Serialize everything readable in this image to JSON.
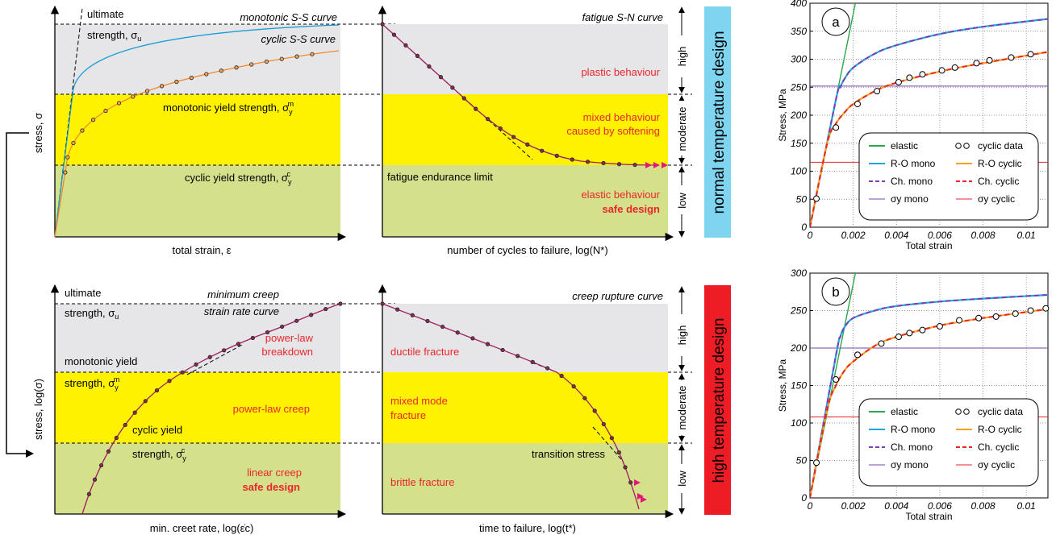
{
  "colors": {
    "gray": "#e6e6e8",
    "yellow": "#fff200",
    "green": "#d5e08b",
    "red_text": "#e8262b",
    "normal_box": "#7fd4ef",
    "high_box": "#ee1c24",
    "monotonic": "#1b9bd6",
    "cyclic": "#f08a2a",
    "magenta": "#9e1e64",
    "marker_fill": "#8a2a55",
    "elastic": "#2aa84a",
    "ro_mono": "#18a8e0",
    "ro_cyclic": "#f6a21a",
    "ch_mono": "#7b3fb4",
    "ch_cyclic": "#e8262b",
    "sy_mono": "#7b3fb4",
    "sy_cyclic": "#e8262b"
  },
  "p1": {
    "ultimate": "ultimate",
    "strength_u": "strength, σ",
    "strength_u_sub": "u",
    "monotonic_curve": "monotonic S-S curve",
    "cyclic_curve": "cyclic S-S curve",
    "mono_yield": "monotonic yield strength, σ",
    "mono_yield_sub": "y",
    "mono_yield_sup": "m",
    "cyclic_yield": "cyclic yield strength, σ",
    "cyclic_yield_sub": "y",
    "cyclic_yield_sup": "c",
    "ylabel": "stress, σ",
    "xlabel": "total strain, ε"
  },
  "p2": {
    "curve_label": "fatigue S-N curve",
    "plastic": "plastic behaviour",
    "mixed_1": "mixed behaviour",
    "mixed_2": "caused by softening",
    "endurance": "fatigue endurance limit",
    "elastic": "elastic behaviour",
    "safe": "safe design",
    "xlabel": "number of cycles to failure, log(N*)",
    "level_high": "high",
    "level_moderate": "moderate",
    "level_low": "low",
    "box_label": "normal temperature design"
  },
  "p3": {
    "ultimate": "ultimate",
    "strength_u": "strength, σ",
    "strength_u_sub": "u",
    "curve_1": "minimum creep",
    "curve_2": "strain rate curve",
    "plb_1": "power-law",
    "plb_2": "breakdown",
    "mono_yield": "monotonic yield",
    "strength_m": "strength, σ",
    "strength_m_sub": "y",
    "strength_m_sup": "m",
    "plc": "power-law creep",
    "cyclic_yield": "cyclic yield",
    "strength_c": "strength, σ",
    "strength_c_sub": "y",
    "strength_c_sup": "c",
    "linear": "linear creep",
    "safe": "safe design",
    "ylabel": "stress, log(σ)",
    "xlabel": "min. creet rate, log(ε̇c)"
  },
  "p4": {
    "curve_label": "creep rupture curve",
    "ductile": "ductile fracture",
    "mixed_1": "mixed mode",
    "mixed_2": "fracture",
    "transition": "transition stress",
    "brittle": "brittle fracture",
    "xlabel": "time to failure, log(t*)",
    "level_high": "high",
    "level_moderate": "moderate",
    "level_low": "low",
    "box_label": "high temperature design"
  },
  "chart_data": [
    {
      "type": "line",
      "panel_label": "a",
      "xlabel": "Total strain",
      "ylabel": "Stress, MPa",
      "xlim": [
        0,
        0.011
      ],
      "ylim": [
        0,
        400
      ],
      "x_ticks": [
        "0",
        "0.002",
        "0.004",
        "0.006",
        "0.008",
        "0.01"
      ],
      "y_ticks": [
        "0",
        "50",
        "100",
        "150",
        "200",
        "250",
        "300",
        "350",
        "400"
      ],
      "sigma_y_mono": 252,
      "sigma_y_cyclic": 116,
      "legend": [
        "elastic",
        "cyclic data",
        "R-O mono",
        "R-O cyclic",
        "Ch. mono",
        "Ch. cyclic",
        "σy mono",
        "σy cyclic"
      ],
      "series": [
        {
          "name": "elastic",
          "x": [
            0,
            0.0021
          ],
          "y": [
            0,
            400
          ]
        },
        {
          "name": "R-O mono",
          "x": [
            0,
            0.0012,
            0.0014,
            0.0016,
            0.002,
            0.003,
            0.004,
            0.006,
            0.008,
            0.011
          ],
          "y": [
            0,
            228,
            250,
            265,
            285,
            310,
            325,
            345,
            358,
            372
          ]
        },
        {
          "name": "R-O cyclic",
          "x": [
            0,
            0.0008,
            0.0012,
            0.0016,
            0.002,
            0.003,
            0.004,
            0.006,
            0.008,
            0.011
          ],
          "y": [
            0,
            150,
            185,
            205,
            220,
            243,
            258,
            278,
            293,
            313
          ]
        },
        {
          "name": "cyclic data",
          "x": [
            0.0003,
            0.0012,
            0.0022,
            0.0031,
            0.0041,
            0.0046,
            0.0052,
            0.0061,
            0.0067,
            0.0077,
            0.0083,
            0.0093,
            0.0102
          ],
          "y": [
            51,
            178,
            220,
            243,
            259,
            267,
            273,
            280,
            285,
            293,
            298,
            303,
            309
          ]
        }
      ]
    },
    {
      "type": "line",
      "panel_label": "b",
      "xlabel": "Total strain",
      "ylabel": "Stress, MPa",
      "xlim": [
        0,
        0.011
      ],
      "ylim": [
        0,
        300
      ],
      "x_ticks": [
        "0",
        "0.002",
        "0.004",
        "0.006",
        "0.008",
        "0.01"
      ],
      "y_ticks": [
        "0",
        "50",
        "100",
        "150",
        "200",
        "250",
        "300"
      ],
      "sigma_y_mono": 200,
      "sigma_y_cyclic": 108,
      "legend": [
        "elastic",
        "cyclic data",
        "R-O mono",
        "R-O cyclic",
        "Ch. mono",
        "Ch. cyclic",
        "σy mono",
        "σy cyclic"
      ],
      "series": [
        {
          "name": "elastic",
          "x": [
            0,
            0.0021
          ],
          "y": [
            0,
            300
          ]
        },
        {
          "name": "R-O mono",
          "x": [
            0,
            0.0012,
            0.0014,
            0.0016,
            0.002,
            0.003,
            0.004,
            0.006,
            0.008,
            0.011
          ],
          "y": [
            0,
            190,
            215,
            228,
            240,
            250,
            256,
            262,
            266,
            271
          ]
        },
        {
          "name": "R-O cyclic",
          "x": [
            0,
            0.0008,
            0.0012,
            0.0016,
            0.002,
            0.003,
            0.004,
            0.006,
            0.008,
            0.011
          ],
          "y": [
            0,
            118,
            150,
            170,
            182,
            203,
            215,
            230,
            240,
            252
          ]
        },
        {
          "name": "cyclic data",
          "x": [
            0.0003,
            0.0012,
            0.0022,
            0.0033,
            0.0041,
            0.0046,
            0.0052,
            0.006,
            0.0069,
            0.0078,
            0.0086,
            0.0095,
            0.0102,
            0.0109
          ],
          "y": [
            47,
            158,
            191,
            206,
            215,
            220,
            224,
            229,
            237,
            240,
            242,
            246,
            250,
            253
          ]
        }
      ]
    }
  ]
}
